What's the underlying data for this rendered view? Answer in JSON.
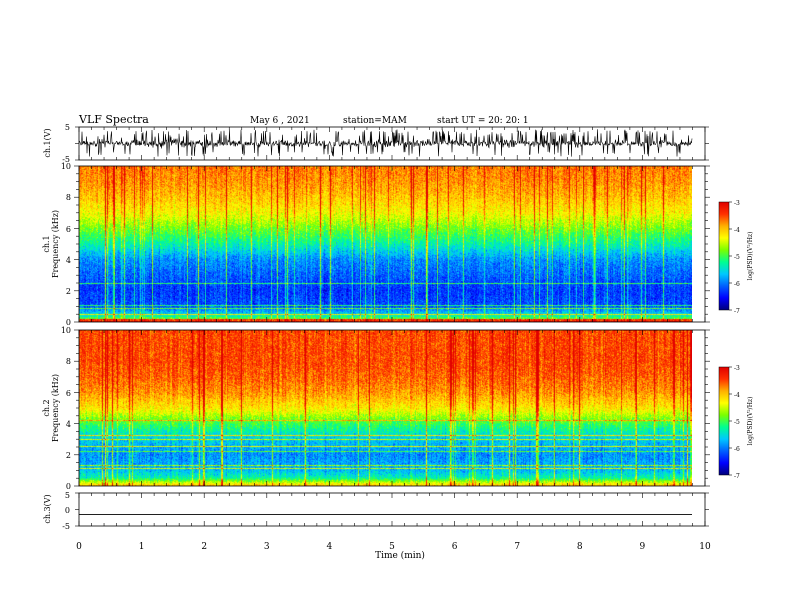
{
  "header": {
    "title": "VLF Spectra",
    "date": "May 6 , 2021",
    "station": "station=MAM",
    "start": "start UT = 20: 20: 1"
  },
  "colors": {
    "colormap": [
      "#00007a",
      "#0000ff",
      "#0060ff",
      "#00c8ff",
      "#00ff90",
      "#7aff00",
      "#ffff00",
      "#ffb000",
      "#ff3000",
      "#e00000"
    ],
    "trace": "#000000"
  },
  "chart_data": [
    {
      "type": "line",
      "name": "ch1-waveform",
      "ylabel": "ch.1(V)",
      "xlim": [
        0,
        10
      ],
      "ylim": [
        -5,
        5
      ],
      "yticks": [
        "5",
        "-5"
      ],
      "description_values": "noisy waveform fluctuating roughly between -2.5 and 2.5 V with frequent spikes to about +4 V"
    },
    {
      "type": "heatmap",
      "name": "ch1-spectrogram",
      "ylabel": "Frequency (kHz)",
      "ylabel2": "ch.1",
      "xlim": [
        0,
        10
      ],
      "ylim": [
        0,
        10
      ],
      "yticks": [
        "0",
        "2",
        "4",
        "6",
        "8",
        "10"
      ],
      "x_end": 9.8,
      "log_psd_by_frequency": {
        "freq_khz": [
          0,
          0.5,
          1,
          2,
          3,
          4,
          5,
          6,
          7,
          8,
          9,
          10
        ],
        "level": [
          -4.5,
          -5.6,
          -6.2,
          -6.3,
          -6.1,
          -5.9,
          -5.3,
          -4.8,
          -4.3,
          -4.0,
          -3.8,
          -3.7
        ]
      },
      "colorbar": {
        "label": "log(PSD)(V²/Hz)",
        "ticks": [
          "-3",
          "-4",
          "-5",
          "-6",
          "-7"
        ],
        "range": [
          -7,
          -3
        ]
      }
    },
    {
      "type": "heatmap",
      "name": "ch2-spectrogram",
      "ylabel": "Frequency (kHz)",
      "ylabel2": "ch.2",
      "xlim": [
        0,
        10
      ],
      "ylim": [
        0,
        10
      ],
      "yticks": [
        "0",
        "2",
        "4",
        "6",
        "8",
        "10"
      ],
      "x_end": 9.8,
      "log_psd_by_frequency": {
        "freq_khz": [
          0,
          0.5,
          1,
          2,
          3,
          4,
          5,
          6,
          7,
          8,
          9,
          10
        ],
        "level": [
          -4.0,
          -5.3,
          -5.7,
          -5.9,
          -5.6,
          -5.0,
          -4.2,
          -3.8,
          -3.6,
          -3.5,
          -3.5,
          -3.5
        ]
      },
      "colorbar": {
        "label": "log(PSD)(V²/Hz)",
        "ticks": [
          "-3",
          "-4",
          "-5",
          "-6",
          "-7"
        ],
        "range": [
          -7,
          -3
        ]
      }
    },
    {
      "type": "line",
      "name": "ch3-waveform",
      "ylabel": "ch.3(V)",
      "xlim": [
        0,
        10
      ],
      "ylim": [
        -5,
        5
      ],
      "yticks": [
        "5",
        "0",
        "-5"
      ],
      "constant_value": -1.5
    }
  ],
  "xaxis": {
    "label": "Time (min)",
    "ticks": [
      "0",
      "1",
      "2",
      "3",
      "4",
      "5",
      "6",
      "7",
      "8",
      "9",
      "10"
    ]
  }
}
